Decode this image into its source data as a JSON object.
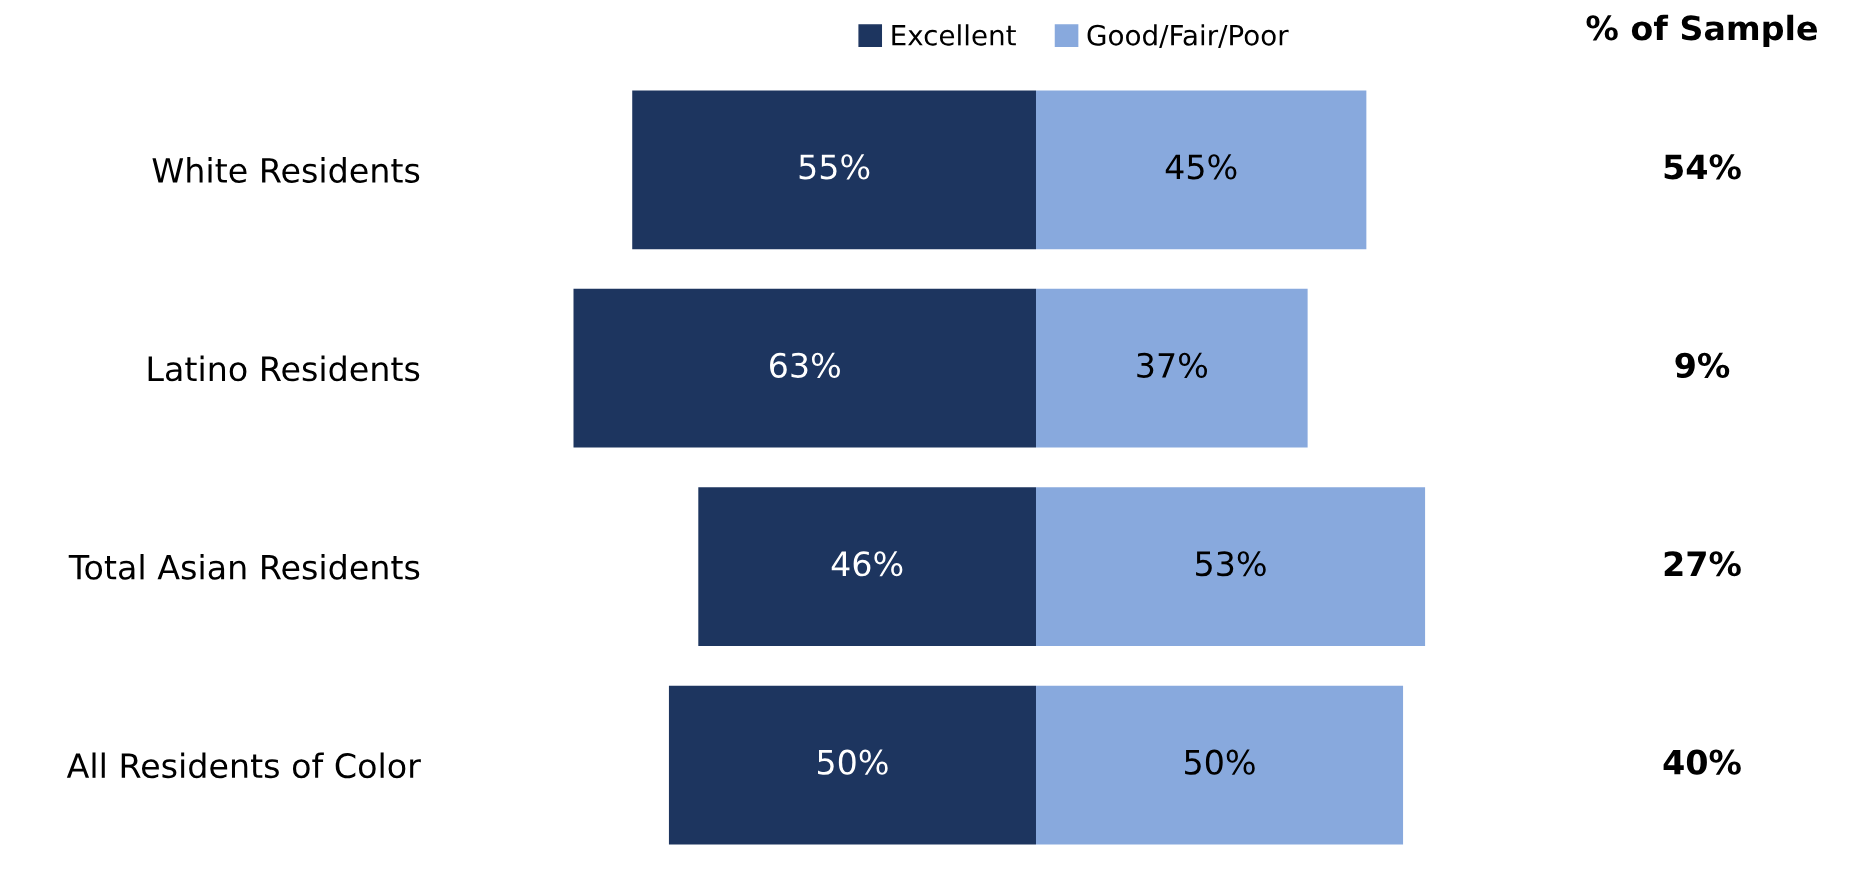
{
  "chart_data": [
    {
      "type": "bar",
      "orientation": "horizontal",
      "categories": [
        "White Residents",
        "Latino Residents",
        "Total Asian Residents",
        "All Residents of Color"
      ],
      "series": [
        {
          "name": "Excellent",
          "color": "#1d355f",
          "values": [
            55,
            63,
            46,
            50
          ],
          "value_labels": [
            "55%",
            "63%",
            "46%",
            "50%"
          ]
        }
      ],
      "legend": "top right",
      "tick_labels": "y"
    },
    {
      "type": "bar",
      "orientation": "horizontal",
      "categories": [
        null,
        null,
        null,
        null
      ],
      "series": [
        {
          "name": "Good/Fair/Poor",
          "color": "#88a9dd",
          "values": [
            45,
            37,
            53,
            50
          ],
          "value_labels": [
            "45%",
            "37%",
            "53%",
            "50%"
          ]
        }
      ],
      "legend": "top left",
      "tick_labels": false,
      "annotations": [
        "% of Sample",
        "54%",
        "9%",
        "27%",
        "40%"
      ]
    }
  ]
}
